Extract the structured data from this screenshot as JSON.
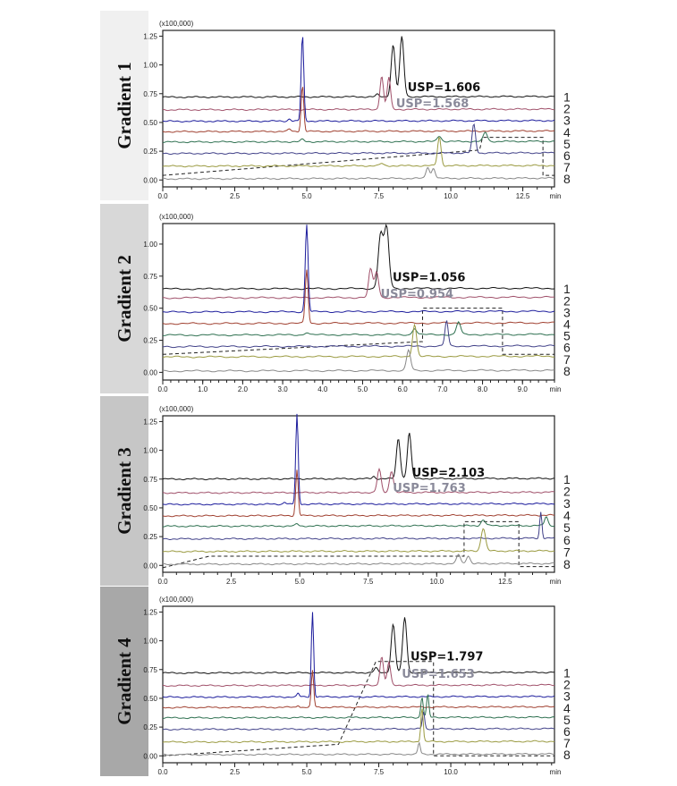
{
  "chart_data": [
    {
      "type": "line",
      "title": "Gradient 1",
      "y_unit": "(x100,000)",
      "xlabel": "min",
      "xlim": [
        0,
        13.6
      ],
      "ylim": [
        -0.06,
        1.3
      ],
      "xticks": [
        0,
        2.5,
        5,
        7.5,
        10,
        12.5
      ],
      "xtick_labels": [
        "0.0",
        "2.5",
        "5.0",
        "7.5",
        "10.0",
        "12.5"
      ],
      "yticks": [
        0,
        0.25,
        0.5,
        0.75,
        1,
        1.25
      ],
      "ytick_labels": [
        "0.00",
        "0.25",
        "0.50",
        "0.75",
        "1.00",
        "1.25"
      ],
      "series": [
        {
          "name": "1",
          "baseline": 0.72,
          "peaks": [
            [
              7.45,
              0.02,
              0.05
            ],
            [
              8.0,
              0.45,
              0.07
            ],
            [
              8.3,
              0.52,
              0.07
            ]
          ]
        },
        {
          "name": "2",
          "baseline": 0.61,
          "peaks": [
            [
              7.6,
              0.29,
              0.06
            ],
            [
              7.85,
              0.28,
              0.06
            ]
          ]
        },
        {
          "name": "3",
          "baseline": 0.51,
          "peaks": [
            [
              4.4,
              0.02,
              0.05
            ],
            [
              4.85,
              0.75,
              0.045
            ]
          ]
        },
        {
          "name": "4",
          "baseline": 0.42,
          "peaks": [
            [
              4.4,
              0.02,
              0.05
            ],
            [
              4.85,
              0.4,
              0.045
            ]
          ]
        },
        {
          "name": "5",
          "baseline": 0.33,
          "peaks": [
            [
              4.85,
              0.02,
              0.06
            ],
            [
              9.6,
              0.05,
              0.07
            ],
            [
              11.2,
              0.08,
              0.07
            ]
          ]
        },
        {
          "name": "6",
          "baseline": 0.23,
          "peaks": [
            [
              10.8,
              0.25,
              0.06
            ]
          ]
        },
        {
          "name": "7",
          "baseline": 0.12,
          "peaks": [
            [
              7.6,
              0.02,
              0.06
            ],
            [
              9.6,
              0.25,
              0.06
            ]
          ]
        },
        {
          "name": "8",
          "baseline": 0.01,
          "peaks": [
            [
              9.2,
              0.1,
              0.06
            ],
            [
              9.4,
              0.09,
              0.06
            ]
          ]
        }
      ],
      "gradient_profile": [
        [
          0,
          0.04
        ],
        [
          11,
          0.26
        ],
        [
          11.1,
          0.37
        ],
        [
          13.2,
          0.37
        ],
        [
          13.2,
          0.04
        ],
        [
          13.6,
          0.04
        ]
      ],
      "annotations": [
        {
          "text": "USP=1.606",
          "x": 8.5,
          "y": 0.77,
          "series": "1"
        },
        {
          "text": "USP=1.568",
          "x": 8.1,
          "y": 0.63,
          "series": "2"
        }
      ]
    },
    {
      "type": "line",
      "title": "Gradient 2",
      "y_unit": "(x100,000)",
      "xlabel": "min",
      "xlim": [
        0,
        9.8
      ],
      "ylim": [
        -0.06,
        1.16
      ],
      "xticks": [
        0,
        1,
        2,
        3,
        4,
        5,
        6,
        7,
        8,
        9
      ],
      "xtick_labels": [
        "0.0",
        "1.0",
        "2.0",
        "3.0",
        "4.0",
        "5.0",
        "6.0",
        "7.0",
        "8.0",
        "9.0"
      ],
      "yticks": [
        0,
        0.25,
        0.5,
        0.75,
        1
      ],
      "ytick_labels": [
        "0.00",
        "0.25",
        "0.50",
        "0.75",
        "1.00"
      ],
      "series": [
        {
          "name": "1",
          "baseline": 0.65,
          "peaks": [
            [
              5.45,
              0.42,
              0.06
            ],
            [
              5.6,
              0.47,
              0.06
            ]
          ]
        },
        {
          "name": "2",
          "baseline": 0.58,
          "peaks": [
            [
              5.2,
              0.22,
              0.05
            ],
            [
              5.35,
              0.2,
              0.05
            ]
          ]
        },
        {
          "name": "3",
          "baseline": 0.47,
          "peaks": [
            [
              3.6,
              0.68,
              0.035
            ]
          ]
        },
        {
          "name": "4",
          "baseline": 0.38,
          "peaks": [
            [
              3.6,
              0.42,
              0.035
            ]
          ]
        },
        {
          "name": "5",
          "baseline": 0.29,
          "peaks": [
            [
              3.6,
              0.02,
              0.05
            ],
            [
              6.3,
              0.05,
              0.05
            ],
            [
              7.4,
              0.1,
              0.05
            ]
          ]
        },
        {
          "name": "6",
          "baseline": 0.2,
          "peaks": [
            [
              7.1,
              0.2,
              0.04
            ]
          ]
        },
        {
          "name": "7",
          "baseline": 0.12,
          "peaks": [
            [
              6.3,
              0.25,
              0.05
            ]
          ]
        },
        {
          "name": "8",
          "baseline": 0.01,
          "peaks": [
            [
              6.15,
              0.16,
              0.05
            ]
          ]
        }
      ],
      "gradient_profile": [
        [
          0,
          0.14
        ],
        [
          6.5,
          0.24
        ],
        [
          6.5,
          0.5
        ],
        [
          8.5,
          0.5
        ],
        [
          8.5,
          0.14
        ],
        [
          9.8,
          0.14
        ]
      ],
      "annotations": [
        {
          "text": "USP=1.056",
          "x": 5.75,
          "y": 0.71,
          "series": "1"
        },
        {
          "text": "USP=0.954",
          "x": 5.45,
          "y": 0.58,
          "series": "2"
        }
      ]
    },
    {
      "type": "line",
      "title": "Gradient 3",
      "y_unit": "(x100,000)",
      "xlabel": "min",
      "xlim": [
        0,
        14.3
      ],
      "ylim": [
        -0.06,
        1.3
      ],
      "xticks": [
        0,
        2.5,
        5,
        7.5,
        10,
        12.5
      ],
      "xtick_labels": [
        "0.0",
        "2.5",
        "5.0",
        "7.5",
        "10.0",
        "12.5"
      ],
      "yticks": [
        0,
        0.25,
        0.5,
        0.75,
        1,
        1.25
      ],
      "ytick_labels": [
        "0.00",
        "0.25",
        "0.50",
        "0.75",
        "1.00",
        "1.25"
      ],
      "series": [
        {
          "name": "1",
          "baseline": 0.75,
          "peaks": [
            [
              7.7,
              0.02,
              0.05
            ],
            [
              8.6,
              0.35,
              0.07
            ],
            [
              9.0,
              0.4,
              0.07
            ]
          ]
        },
        {
          "name": "2",
          "baseline": 0.63,
          "peaks": [
            [
              7.9,
              0.2,
              0.07
            ],
            [
              8.35,
              0.19,
              0.07
            ]
          ]
        },
        {
          "name": "3",
          "baseline": 0.53,
          "peaks": [
            [
              4.45,
              0.02,
              0.05
            ],
            [
              4.9,
              0.78,
              0.045
            ]
          ]
        },
        {
          "name": "4",
          "baseline": 0.43,
          "peaks": [
            [
              4.9,
              0.4,
              0.045
            ]
          ]
        },
        {
          "name": "5",
          "baseline": 0.34,
          "peaks": [
            [
              4.9,
              0.02,
              0.05
            ],
            [
              11.7,
              0.05,
              0.08
            ],
            [
              14.0,
              0.08,
              0.06
            ]
          ]
        },
        {
          "name": "6",
          "baseline": 0.23,
          "peaks": [
            [
              13.8,
              0.23,
              0.04
            ]
          ]
        },
        {
          "name": "7",
          "baseline": 0.12,
          "peaks": [
            [
              11.7,
              0.2,
              0.08
            ]
          ]
        },
        {
          "name": "8",
          "baseline": 0.01,
          "peaks": [
            [
              10.8,
              0.08,
              0.07
            ],
            [
              11.15,
              0.07,
              0.07
            ]
          ]
        }
      ],
      "gradient_profile": [
        [
          0,
          -0.02
        ],
        [
          1.7,
          0.08
        ],
        [
          11,
          0.08
        ],
        [
          11,
          0.38
        ],
        [
          13,
          0.38
        ],
        [
          13,
          -0.01
        ],
        [
          14.3,
          -0.01
        ]
      ],
      "annotations": [
        {
          "text": "USP=2.103",
          "x": 9.1,
          "y": 0.77,
          "series": "1"
        },
        {
          "text": "USP=1.763",
          "x": 8.4,
          "y": 0.64,
          "series": "2"
        }
      ]
    },
    {
      "type": "line",
      "title": "Gradient 4",
      "y_unit": "(x100,000)",
      "xlabel": "min",
      "xlim": [
        0,
        13.6
      ],
      "ylim": [
        -0.06,
        1.3
      ],
      "xticks": [
        0,
        2.5,
        5,
        7.5,
        10
      ],
      "xtick_labels": [
        "0.0",
        "2.5",
        "5.0",
        "7.5",
        "10.0"
      ],
      "yticks": [
        0,
        0.25,
        0.5,
        0.75,
        1,
        1.25
      ],
      "ytick_labels": [
        "0.00",
        "0.25",
        "0.50",
        "0.75",
        "1.00",
        "1.25"
      ],
      "series": [
        {
          "name": "1",
          "baseline": 0.72,
          "peaks": [
            [
              7.4,
              0.04,
              0.06
            ],
            [
              8.0,
              0.42,
              0.07
            ],
            [
              8.4,
              0.48,
              0.07
            ]
          ]
        },
        {
          "name": "2",
          "baseline": 0.61,
          "peaks": [
            [
              7.6,
              0.25,
              0.06
            ],
            [
              7.85,
              0.2,
              0.06
            ]
          ]
        },
        {
          "name": "3",
          "baseline": 0.51,
          "peaks": [
            [
              4.7,
              0.03,
              0.04
            ],
            [
              5.2,
              0.74,
              0.04
            ]
          ]
        },
        {
          "name": "4",
          "baseline": 0.42,
          "peaks": [
            [
              4.7,
              0.02,
              0.04
            ],
            [
              5.2,
              0.32,
              0.04
            ]
          ]
        },
        {
          "name": "5",
          "baseline": 0.33,
          "peaks": [
            [
              9.0,
              0.18,
              0.04
            ],
            [
              9.2,
              0.2,
              0.04
            ]
          ]
        },
        {
          "name": "6",
          "baseline": 0.23,
          "peaks": [
            [
              9.05,
              0.15,
              0.04
            ]
          ]
        },
        {
          "name": "7",
          "baseline": 0.12,
          "peaks": [
            [
              9.0,
              0.3,
              0.04
            ]
          ]
        },
        {
          "name": "8",
          "baseline": 0.01,
          "peaks": [
            [
              8.9,
              0.1,
              0.04
            ]
          ]
        }
      ],
      "gradient_profile": [
        [
          0,
          0
        ],
        [
          6.1,
          0.1
        ],
        [
          7.4,
          0.82
        ],
        [
          8.3,
          0.82
        ],
        [
          9.4,
          0.82
        ],
        [
          9.4,
          0.0
        ],
        [
          13.6,
          0.0
        ]
      ],
      "annotations": [
        {
          "text": "USP=1.797",
          "x": 8.6,
          "y": 0.83,
          "series": "1"
        },
        {
          "text": "USP=1.653",
          "x": 8.3,
          "y": 0.68,
          "series": "2"
        }
      ]
    }
  ],
  "colors": {
    "1": "#111111",
    "2": "#a0506a",
    "3": "#1c1c9c",
    "4": "#a04030",
    "5": "#2e7050",
    "6": "#404088",
    "7": "#9a9a40",
    "8": "#888888"
  },
  "annot_colors": [
    "#111111",
    "#8a8a9a"
  ],
  "panel_bg": [
    "#f0f0f0",
    "#d8d8d8",
    "#c6c6c6",
    "#a8a8a8"
  ]
}
